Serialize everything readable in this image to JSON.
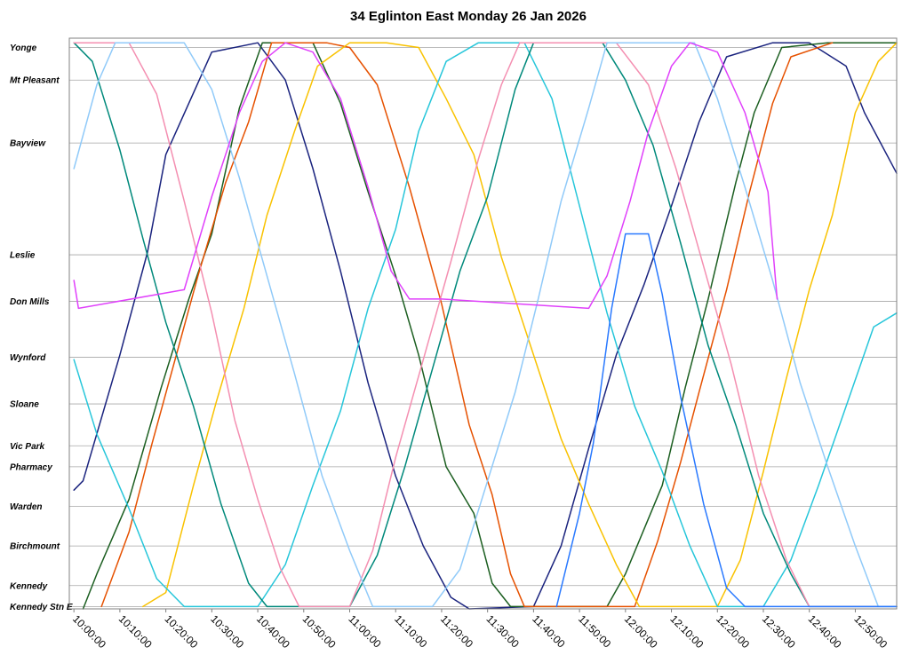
{
  "chart_data": {
    "type": "line",
    "title": "34 Eglinton East Monday 26 Jan 2026",
    "xlabel": "",
    "ylabel": "",
    "x_range": [
      "09:59:00",
      "12:59:00"
    ],
    "x_ticks": [
      "10:00:00",
      "10:10:00",
      "10:20:00",
      "10:30:00",
      "10:40:00",
      "10:50:00",
      "11:00:00",
      "11:10:00",
      "11:20:00",
      "11:30:00",
      "11:40:00",
      "11:50:00",
      "12:00:00",
      "12:10:00",
      "12:20:00",
      "12:30:00",
      "12:40:00",
      "12:50:00"
    ],
    "y_range_km": [
      0,
      12.25
    ],
    "stops": [
      {
        "name": "Yonge",
        "km": 0.2
      },
      {
        "name": "Mt Pleasant",
        "km": 0.9
      },
      {
        "name": "Bayview",
        "km": 2.25
      },
      {
        "name": "Leslie",
        "km": 4.65
      },
      {
        "name": "Don Mills",
        "km": 5.65
      },
      {
        "name": "Wynford",
        "km": 6.85
      },
      {
        "name": "Sloane",
        "km": 7.85
      },
      {
        "name": "Vic Park",
        "km": 8.75
      },
      {
        "name": "Pharmacy",
        "km": 9.2
      },
      {
        "name": "Warden",
        "km": 10.05
      },
      {
        "name": "Birchmount",
        "km": 10.9
      },
      {
        "name": "Kennedy",
        "km": 11.75
      },
      {
        "name": "Kennedy Stn E",
        "km": 12.2
      }
    ],
    "grid": true,
    "legend": "none",
    "series": [
      {
        "color": "#1a237e",
        "points": [
          [
            "10:00:00",
            9.7
          ],
          [
            "10:02:00",
            9.5
          ],
          [
            "10:10:00",
            6.8
          ],
          [
            "10:16:00",
            4.6
          ],
          [
            "10:20:00",
            2.5
          ],
          [
            "10:30:00",
            0.3
          ],
          [
            "10:40:00",
            0.1
          ],
          [
            "10:46:00",
            0.9
          ],
          [
            "10:52:00",
            2.8
          ],
          [
            "10:58:00",
            5.0
          ],
          [
            "11:04:00",
            7.4
          ],
          [
            "11:10:00",
            9.4
          ],
          [
            "11:16:00",
            10.9
          ],
          [
            "11:22:00",
            12.0
          ],
          [
            "11:26:00",
            12.25
          ],
          [
            "11:40:00",
            12.2
          ],
          [
            "11:46:00",
            10.9
          ],
          [
            "11:52:00",
            8.8
          ],
          [
            "11:58:00",
            6.8
          ],
          [
            "12:04:00",
            5.3
          ],
          [
            "12:10:00",
            3.6
          ],
          [
            "12:16:00",
            1.8
          ],
          [
            "12:22:00",
            0.4
          ],
          [
            "12:32:00",
            0.1
          ],
          [
            "12:40:00",
            0.1
          ],
          [
            "12:48:00",
            0.6
          ],
          [
            "12:52:00",
            1.6
          ],
          [
            "12:59:00",
            2.9
          ]
        ]
      },
      {
        "color": "#1b5e20",
        "points": [
          [
            "10:02:00",
            12.25
          ],
          [
            "10:05:00",
            11.5
          ],
          [
            "10:12:00",
            9.9
          ],
          [
            "10:19:00",
            7.5
          ],
          [
            "10:25:00",
            5.6
          ],
          [
            "10:30:00",
            4.2
          ],
          [
            "10:36:00",
            1.5
          ],
          [
            "10:41:00",
            0.1
          ],
          [
            "10:52:00",
            0.1
          ],
          [
            "10:58:00",
            1.4
          ],
          [
            "11:04:00",
            3.3
          ],
          [
            "11:10:00",
            5.1
          ],
          [
            "11:15:00",
            6.8
          ],
          [
            "11:21:00",
            9.2
          ],
          [
            "11:27:00",
            10.2
          ],
          [
            "11:31:00",
            11.7
          ],
          [
            "11:35:00",
            12.2
          ],
          [
            "11:56:00",
            12.2
          ],
          [
            "12:00:00",
            11.5
          ],
          [
            "12:08:00",
            9.6
          ],
          [
            "12:13:00",
            7.5
          ],
          [
            "12:18:00",
            5.6
          ],
          [
            "12:24:00",
            3.1
          ],
          [
            "12:28:00",
            1.6
          ],
          [
            "12:34:00",
            0.2
          ],
          [
            "12:44:00",
            0.1
          ],
          [
            "12:59:00",
            0.1
          ]
        ]
      },
      {
        "color": "#e65100",
        "points": [
          [
            "10:06:00",
            12.2
          ],
          [
            "10:12:00",
            10.6
          ],
          [
            "10:17:00",
            8.7
          ],
          [
            "10:22:00",
            6.9
          ],
          [
            "10:27:00",
            5.1
          ],
          [
            "10:33:00",
            3.1
          ],
          [
            "10:38:00",
            1.8
          ],
          [
            "10:43:00",
            0.1
          ],
          [
            "10:55:00",
            0.1
          ],
          [
            "11:00:00",
            0.2
          ],
          [
            "11:06:00",
            1.0
          ],
          [
            "11:13:00",
            3.2
          ],
          [
            "11:20:00",
            5.7
          ],
          [
            "11:26:00",
            8.3
          ],
          [
            "11:31:00",
            9.8
          ],
          [
            "11:35:00",
            11.5
          ],
          [
            "11:38:00",
            12.2
          ],
          [
            "12:02:00",
            12.2
          ],
          [
            "12:07:00",
            10.8
          ],
          [
            "12:12:00",
            9.1
          ],
          [
            "12:16:00",
            7.6
          ],
          [
            "12:22:00",
            5.4
          ],
          [
            "12:27:00",
            3.3
          ],
          [
            "12:32:00",
            1.4
          ],
          [
            "12:36:00",
            0.4
          ],
          [
            "12:45:00",
            0.1
          ]
        ]
      },
      {
        "color": "#f9c200",
        "points": [
          [
            "10:15:00",
            12.2
          ],
          [
            "10:20:00",
            11.9
          ],
          [
            "10:26:00",
            9.6
          ],
          [
            "10:31:00",
            7.8
          ],
          [
            "10:37:00",
            5.8
          ],
          [
            "10:42:00",
            3.8
          ],
          [
            "10:48:00",
            2.0
          ],
          [
            "10:53:00",
            0.6
          ],
          [
            "11:00:00",
            0.1
          ],
          [
            "11:08:00",
            0.1
          ],
          [
            "11:15:00",
            0.2
          ],
          [
            "11:21:00",
            1.3
          ],
          [
            "11:27:00",
            2.5
          ],
          [
            "11:33:00",
            4.7
          ],
          [
            "11:40:00",
            6.8
          ],
          [
            "11:46:00",
            8.6
          ],
          [
            "11:52:00",
            10.0
          ],
          [
            "11:58:00",
            11.3
          ],
          [
            "12:03:00",
            12.2
          ],
          [
            "12:20:00",
            12.2
          ],
          [
            "12:25:00",
            11.2
          ],
          [
            "12:30:00",
            9.3
          ],
          [
            "12:35:00",
            7.3
          ],
          [
            "12:40:00",
            5.4
          ],
          [
            "12:45:00",
            3.8
          ],
          [
            "12:50:00",
            1.6
          ],
          [
            "12:55:00",
            0.5
          ],
          [
            "12:59:00",
            0.1
          ]
        ]
      },
      {
        "color": "#26c6da",
        "points": [
          [
            "10:00:00",
            6.9
          ],
          [
            "10:05:00",
            8.5
          ],
          [
            "10:12:00",
            10.1
          ],
          [
            "10:18:00",
            11.6
          ],
          [
            "10:24:00",
            12.2
          ],
          [
            "10:40:00",
            12.2
          ],
          [
            "10:46:00",
            11.3
          ],
          [
            "10:52:00",
            9.6
          ],
          [
            "10:58:00",
            8.0
          ],
          [
            "11:04:00",
            5.8
          ],
          [
            "11:10:00",
            4.1
          ],
          [
            "11:15:00",
            2.0
          ],
          [
            "11:21:00",
            0.5
          ],
          [
            "11:28:00",
            0.1
          ],
          [
            "11:38:00",
            0.1
          ],
          [
            "11:44:00",
            1.3
          ],
          [
            "11:50:00",
            3.6
          ],
          [
            "11:56:00",
            5.9
          ],
          [
            "12:02:00",
            7.9
          ],
          [
            "12:08:00",
            9.3
          ],
          [
            "12:14:00",
            10.9
          ],
          [
            "12:20:00",
            12.2
          ],
          [
            "12:30:00",
            12.2
          ],
          [
            "12:36:00",
            11.2
          ],
          [
            "12:42:00",
            9.6
          ],
          [
            "12:48:00",
            7.9
          ],
          [
            "12:54:00",
            6.2
          ],
          [
            "12:59:00",
            5.9
          ]
        ]
      },
      {
        "color": "#00897b",
        "points": [
          [
            "10:00:00",
            0.1
          ],
          [
            "10:04:00",
            0.5
          ],
          [
            "10:10:00",
            2.4
          ],
          [
            "10:15:00",
            4.3
          ],
          [
            "10:20:00",
            6.1
          ],
          [
            "10:26:00",
            7.9
          ],
          [
            "10:32:00",
            10.0
          ],
          [
            "10:38:00",
            11.7
          ],
          [
            "10:42:00",
            12.2
          ],
          [
            "11:00:00",
            12.2
          ],
          [
            "11:06:00",
            11.1
          ],
          [
            "11:12:00",
            9.2
          ],
          [
            "11:18:00",
            7.1
          ],
          [
            "11:24:00",
            5.0
          ],
          [
            "11:30:00",
            3.4
          ],
          [
            "11:36:00",
            1.1
          ],
          [
            "11:40:00",
            0.1
          ],
          [
            "11:55:00",
            0.1
          ],
          [
            "12:00:00",
            0.9
          ],
          [
            "12:06:00",
            2.3
          ],
          [
            "12:12:00",
            4.4
          ],
          [
            "12:18:00",
            6.6
          ],
          [
            "12:24:00",
            8.3
          ],
          [
            "12:30:00",
            10.2
          ],
          [
            "12:36:00",
            11.5
          ],
          [
            "12:40:00",
            12.2
          ],
          [
            "12:59:00",
            12.2
          ]
        ]
      },
      {
        "color": "#f48fb1",
        "points": [
          [
            "10:00:00",
            0.1
          ],
          [
            "10:12:00",
            0.1
          ],
          [
            "10:18:00",
            1.2
          ],
          [
            "10:24:00",
            3.5
          ],
          [
            "10:30:00",
            5.9
          ],
          [
            "10:35:00",
            8.2
          ],
          [
            "10:40:00",
            9.9
          ],
          [
            "10:45:00",
            11.4
          ],
          [
            "10:49:00",
            12.2
          ],
          [
            "11:00:00",
            12.2
          ],
          [
            "11:05:00",
            11.0
          ],
          [
            "11:10:00",
            9.0
          ],
          [
            "11:16:00",
            6.9
          ],
          [
            "11:22:00",
            4.8
          ],
          [
            "11:28:00",
            2.6
          ],
          [
            "11:33:00",
            1.0
          ],
          [
            "11:37:00",
            0.1
          ],
          [
            "11:58:00",
            0.1
          ],
          [
            "12:05:00",
            1.0
          ],
          [
            "12:11:00",
            2.8
          ],
          [
            "12:17:00",
            4.9
          ],
          [
            "12:23:00",
            7.0
          ],
          [
            "12:29:00",
            9.4
          ],
          [
            "12:35:00",
            11.2
          ],
          [
            "12:40:00",
            12.2
          ],
          [
            "12:59:00",
            12.2
          ]
        ]
      },
      {
        "color": "#90caf9",
        "points": [
          [
            "10:00:00",
            2.8
          ],
          [
            "10:05:00",
            1.0
          ],
          [
            "10:09:00",
            0.1
          ],
          [
            "10:24:00",
            0.1
          ],
          [
            "10:30:00",
            1.1
          ],
          [
            "10:36:00",
            3.0
          ],
          [
            "10:42:00",
            5.1
          ],
          [
            "10:48:00",
            7.2
          ],
          [
            "10:54:00",
            9.4
          ],
          [
            "11:00:00",
            11.0
          ],
          [
            "11:05:00",
            12.2
          ],
          [
            "11:18:00",
            12.2
          ],
          [
            "11:24:00",
            11.4
          ],
          [
            "11:30:00",
            9.5
          ],
          [
            "11:36:00",
            7.6
          ],
          [
            "11:41:00",
            5.6
          ],
          [
            "11:46:00",
            3.5
          ],
          [
            "11:52:00",
            1.5
          ],
          [
            "11:56:00",
            0.1
          ],
          [
            "12:15:00",
            0.1
          ],
          [
            "12:20:00",
            1.3
          ],
          [
            "12:26:00",
            3.2
          ],
          [
            "12:32:00",
            5.2
          ],
          [
            "12:38:00",
            7.4
          ],
          [
            "12:44:00",
            9.2
          ],
          [
            "12:50:00",
            10.9
          ],
          [
            "12:55:00",
            12.2
          ],
          [
            "12:59:00",
            12.2
          ]
        ]
      },
      {
        "color": "#e040fb",
        "points": [
          [
            "10:00:00",
            5.2
          ],
          [
            "10:01:00",
            5.8
          ],
          [
            "10:24:00",
            5.4
          ],
          [
            "10:30:00",
            3.4
          ],
          [
            "10:36:00",
            1.6
          ],
          [
            "10:41:00",
            0.5
          ],
          [
            "10:46:00",
            0.1
          ],
          [
            "10:52:00",
            0.3
          ],
          [
            "10:58:00",
            1.3
          ],
          [
            "11:04:00",
            3.2
          ],
          [
            "11:09:00",
            5.0
          ],
          [
            "11:13:00",
            5.6
          ],
          [
            "11:20:00",
            5.6
          ],
          [
            "11:52:00",
            5.8
          ],
          [
            "11:56:00",
            5.1
          ],
          [
            "12:01:00",
            3.5
          ],
          [
            "12:05:00",
            2.0
          ],
          [
            "12:10:00",
            0.6
          ],
          [
            "12:14:00",
            0.1
          ],
          [
            "12:20:00",
            0.3
          ],
          [
            "12:26:00",
            1.6
          ],
          [
            "12:31:00",
            3.3
          ],
          [
            "12:33:00",
            5.6
          ]
        ]
      },
      {
        "color": "#2979ff",
        "points": [
          [
            "11:45:00",
            12.2
          ],
          [
            "11:50:00",
            10.2
          ],
          [
            "11:53:00",
            8.7
          ],
          [
            "11:57:00",
            5.8
          ],
          [
            "12:00:00",
            4.2
          ],
          [
            "12:05:00",
            4.2
          ],
          [
            "12:08:00",
            5.5
          ],
          [
            "12:12:00",
            7.7
          ],
          [
            "12:17:00",
            10.0
          ],
          [
            "12:22:00",
            11.8
          ],
          [
            "12:26:00",
            12.2
          ],
          [
            "12:59:00",
            12.2
          ]
        ]
      }
    ]
  }
}
